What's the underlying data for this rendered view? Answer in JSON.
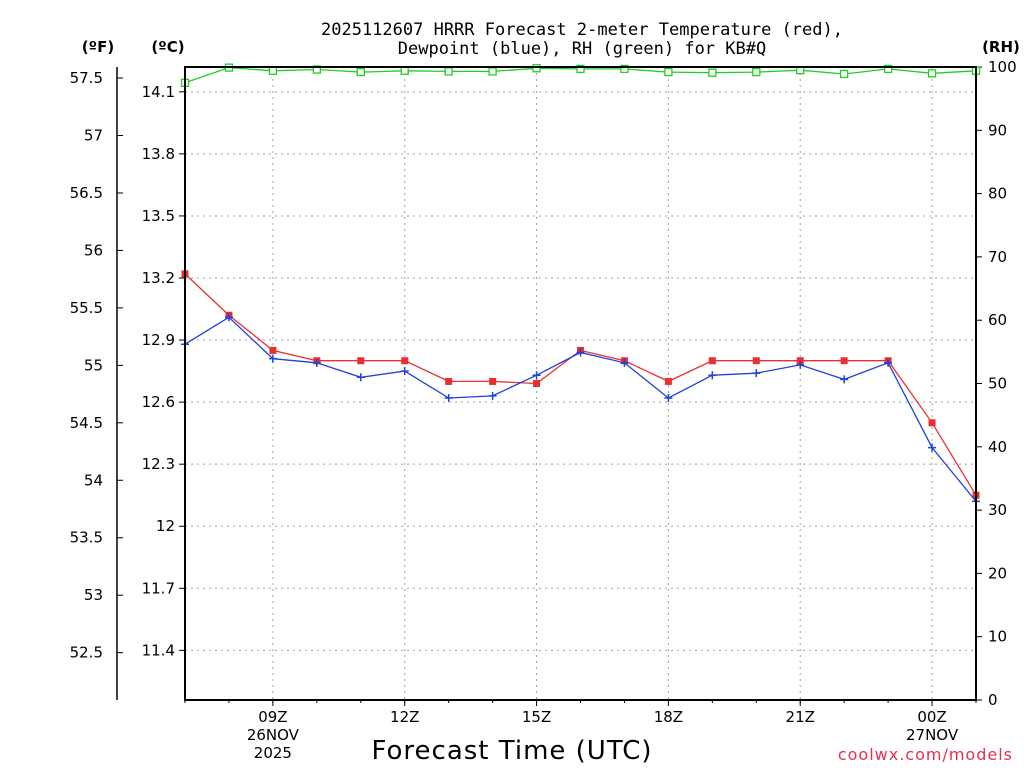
{
  "chart_data": {
    "type": "line",
    "title_line1": "2025112607 HRRR Forecast 2-meter Temperature (red),",
    "title_line2": "Dewpoint (blue), RH (green) for KB#Q",
    "unit_f": "(ºF)",
    "unit_c": "(ºC)",
    "unit_rh": "(RH)",
    "xlabel": "Forecast Time (UTC)",
    "credit": "coolwx.com/models",
    "x_hours": [
      7,
      8,
      9,
      10,
      11,
      12,
      13,
      14,
      15,
      16,
      17,
      18,
      19,
      20,
      21,
      22,
      23,
      24,
      25
    ],
    "x_range": [
      7,
      25
    ],
    "x_ticks": [
      {
        "hour": 9,
        "label": "09Z",
        "sub1": "26NOV",
        "sub2": "2025"
      },
      {
        "hour": 12,
        "label": "12Z",
        "sub1": "",
        "sub2": ""
      },
      {
        "hour": 15,
        "label": "15Z",
        "sub1": "",
        "sub2": ""
      },
      {
        "hour": 18,
        "label": "18Z",
        "sub1": "",
        "sub2": ""
      },
      {
        "hour": 21,
        "label": "21Z",
        "sub1": "",
        "sub2": ""
      },
      {
        "hour": 24,
        "label": "00Z",
        "sub1": "27NOV",
        "sub2": ""
      }
    ],
    "y_c_range": [
      11.16,
      14.22
    ],
    "y_c_ticks": [
      "14.1",
      "13.8",
      "13.5",
      "13.2",
      "12.9",
      "12.6",
      "12.3",
      "12",
      "11.7",
      "11.4"
    ],
    "y_f_ticks": [
      "57.5",
      "57",
      "56.5",
      "56",
      "55.5",
      "55",
      "54.5",
      "54",
      "53.5",
      "53",
      "52.5"
    ],
    "y_rh_range": [
      0,
      100
    ],
    "y_rh_ticks": [
      "0",
      "10",
      "20",
      "30",
      "40",
      "50",
      "60",
      "70",
      "80",
      "90",
      "100"
    ],
    "grid": true,
    "colors": {
      "temperature": "#e83030",
      "dewpoint": "#2040e0",
      "rh": "#20d020",
      "grid": "#a0a0a0"
    },
    "series": [
      {
        "name": "Temperature",
        "unit": "C",
        "marker": "square",
        "values": [
          13.22,
          13.02,
          12.85,
          12.8,
          12.8,
          12.8,
          12.7,
          12.7,
          12.69,
          12.85,
          12.8,
          12.7,
          12.8,
          12.8,
          12.8,
          12.8,
          12.8,
          12.5,
          12.15
        ]
      },
      {
        "name": "Dewpoint",
        "unit": "C",
        "marker": "plus",
        "values": [
          12.88,
          13.01,
          12.81,
          12.79,
          12.72,
          12.75,
          12.62,
          12.63,
          12.73,
          12.84,
          12.79,
          12.62,
          12.73,
          12.74,
          12.78,
          12.71,
          12.79,
          12.38,
          12.12
        ]
      },
      {
        "name": "RH",
        "unit": "%",
        "marker": "hollow-square",
        "values": [
          97.5,
          99.9,
          99.4,
          99.6,
          99.2,
          99.4,
          99.3,
          99.3,
          99.8,
          99.7,
          99.7,
          99.2,
          99.1,
          99.2,
          99.5,
          98.9,
          99.7,
          99.0,
          99.4
        ]
      }
    ]
  }
}
